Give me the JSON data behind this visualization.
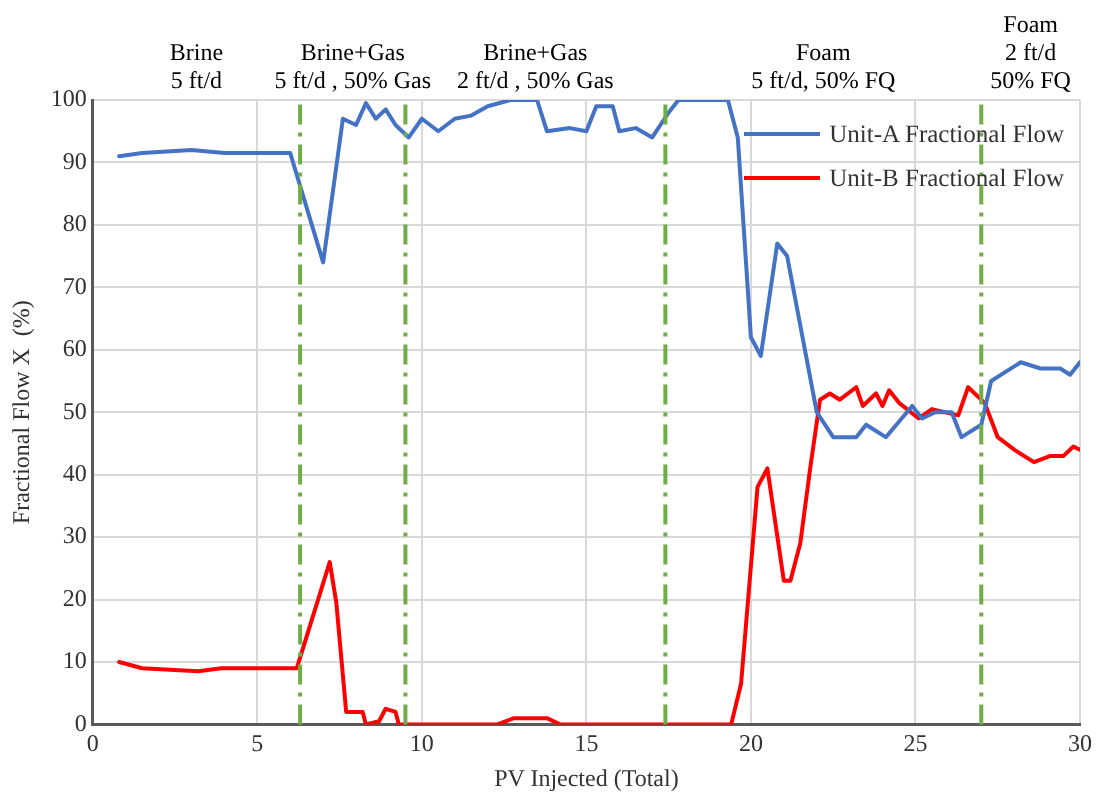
{
  "chart_data": {
    "type": "line",
    "xlabel": "PV Injected (Total)",
    "ylabel": "Fractional Flow X  (%)",
    "xlim": [
      0,
      30
    ],
    "xticks": [
      0,
      5,
      10,
      15,
      20,
      25,
      30
    ],
    "ylim": [
      0,
      100
    ],
    "yticks": [
      0,
      10,
      20,
      30,
      40,
      50,
      60,
      70,
      80,
      90,
      100
    ],
    "grid": true,
    "legend": "top right",
    "marker": "none",
    "line_style": "solid",
    "annotations": [
      "Brine\n5 ft/d",
      "Brine+Gas\n5 ft/d , 50% Gas",
      "Brine+Gas\n2 ft/d , 50% Gas",
      "Foam\n5 ft/d, 50% FQ",
      "Foam\n2 ft/d\n50% FQ"
    ],
    "ref_lines": [
      {
        "axis": "x",
        "value": 6.3,
        "color": "#70ad47",
        "line_style": "dashed"
      },
      {
        "axis": "x",
        "value": 9.5,
        "color": "#70ad47",
        "line_style": "dashed"
      },
      {
        "axis": "x",
        "value": 17.4,
        "color": "#70ad47",
        "line_style": "dashed"
      },
      {
        "axis": "x",
        "value": 27.0,
        "color": "#70ad47",
        "line_style": "dashed"
      }
    ],
    "series": [
      {
        "name": "Unit-A Fractional Flow",
        "color": "#4472c4",
        "x": [
          0.8,
          1.5,
          3,
          4,
          6.0,
          7.0,
          7.6,
          8.0,
          8.3,
          8.6,
          8.9,
          9.2,
          9.6,
          10,
          10.5,
          11,
          11.5,
          12,
          12.7,
          13.5,
          13.8,
          14.5,
          15,
          15.3,
          15.8,
          16,
          16.5,
          17,
          17.5,
          17.8,
          19.3,
          19.6,
          20.0,
          20.3,
          20.8,
          21.1,
          22.0,
          22.5,
          23.2,
          23.5,
          24.1,
          24.9,
          25.2,
          25.6,
          26.1,
          26.4,
          27.0,
          27.3,
          28.2,
          28.8,
          29.4,
          29.7,
          30
        ],
        "values": [
          91,
          91.5,
          92,
          91.5,
          91.5,
          74,
          97,
          96,
          99.5,
          97,
          98.5,
          96,
          94,
          97,
          95,
          97,
          97.5,
          99,
          100,
          100,
          95,
          95.5,
          95,
          99,
          99,
          95,
          95.5,
          94,
          98,
          100,
          100,
          94,
          62,
          59,
          77,
          75,
          50,
          46,
          46,
          48,
          46,
          51,
          49,
          50,
          50,
          46,
          48,
          55,
          58,
          57,
          57,
          56,
          58
        ]
      },
      {
        "name": "Unit-B Fractional Flow",
        "color": "#ff0000",
        "x": [
          0.8,
          1.5,
          3.2,
          3.9,
          6.2,
          7.2,
          7.4,
          7.7,
          8.2,
          8.3,
          8.7,
          8.9,
          9.2,
          9.3,
          12.3,
          12.8,
          13.8,
          14.2,
          19.4,
          19.7,
          20.2,
          20.5,
          21.0,
          21.2,
          21.5,
          21.8,
          22.1,
          22.4,
          22.7,
          23.2,
          23.4,
          23.8,
          24.0,
          24.2,
          24.5,
          25.1,
          25.5,
          26.3,
          26.6,
          27.1,
          27.5,
          28.0,
          28.6,
          29.1,
          29.5,
          29.8,
          30
        ],
        "values": [
          10,
          9,
          8.5,
          9,
          9,
          26,
          19.5,
          2,
          2,
          0,
          0.5,
          2.5,
          2,
          0,
          0,
          1,
          1,
          0,
          0,
          6.5,
          38,
          41,
          23,
          23,
          29,
          41,
          52,
          53,
          52,
          54,
          51,
          53,
          51,
          53.5,
          51.5,
          49,
          50.5,
          49.5,
          54,
          51.5,
          46,
          44,
          42,
          43,
          43,
          44.5,
          44
        ]
      }
    ]
  }
}
